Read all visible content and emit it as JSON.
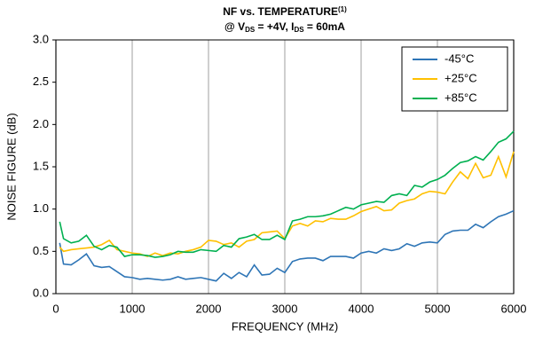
{
  "chart_data": {
    "type": "line",
    "title": "NF vs. TEMPERATURE",
    "title_note": "(1)",
    "subtitle": [
      "@ V",
      "DS",
      " = +4V, I",
      "DS",
      " = 60mA"
    ],
    "xlabel": "FREQUENCY (MHz)",
    "ylabel": "NOISE FIGURE (dB)",
    "x": [
      50,
      100,
      200,
      300,
      400,
      500,
      600,
      700,
      800,
      900,
      1000,
      1100,
      1200,
      1300,
      1400,
      1500,
      1600,
      1700,
      1800,
      1900,
      2000,
      2100,
      2200,
      2300,
      2400,
      2500,
      2600,
      2700,
      2800,
      2900,
      3000,
      3100,
      3200,
      3300,
      3400,
      3500,
      3600,
      3700,
      3800,
      3900,
      4000,
      4100,
      4200,
      4300,
      4400,
      4500,
      4600,
      4700,
      4800,
      4900,
      5000,
      5100,
      5200,
      5300,
      5400,
      5500,
      5600,
      5700,
      5800,
      5900,
      6000
    ],
    "series": [
      {
        "name": "-45°C",
        "color": "#2e75b6",
        "values": [
          0.6,
          0.35,
          0.34,
          0.4,
          0.47,
          0.33,
          0.31,
          0.32,
          0.26,
          0.2,
          0.19,
          0.17,
          0.18,
          0.17,
          0.16,
          0.17,
          0.2,
          0.17,
          0.18,
          0.19,
          0.17,
          0.15,
          0.24,
          0.18,
          0.25,
          0.2,
          0.34,
          0.22,
          0.23,
          0.3,
          0.25,
          0.38,
          0.41,
          0.42,
          0.42,
          0.39,
          0.44,
          0.44,
          0.44,
          0.42,
          0.48,
          0.5,
          0.48,
          0.53,
          0.51,
          0.53,
          0.59,
          0.56,
          0.6,
          0.61,
          0.6,
          0.7,
          0.74,
          0.75,
          0.75,
          0.82,
          0.78,
          0.85,
          0.91,
          0.94,
          0.98
        ]
      },
      {
        "name": "+25°C",
        "color": "#ffc000",
        "values": [
          0.55,
          0.5,
          0.52,
          0.53,
          0.54,
          0.55,
          0.58,
          0.63,
          0.52,
          0.5,
          0.48,
          0.47,
          0.44,
          0.48,
          0.45,
          0.48,
          0.47,
          0.5,
          0.52,
          0.55,
          0.63,
          0.62,
          0.58,
          0.6,
          0.55,
          0.62,
          0.64,
          0.72,
          0.73,
          0.74,
          0.65,
          0.8,
          0.83,
          0.8,
          0.86,
          0.85,
          0.89,
          0.88,
          0.88,
          0.92,
          0.97,
          1.0,
          1.03,
          0.98,
          0.99,
          1.07,
          1.1,
          1.12,
          1.18,
          1.21,
          1.2,
          1.18,
          1.32,
          1.44,
          1.36,
          1.54,
          1.37,
          1.4,
          1.62,
          1.38,
          1.68
        ]
      },
      {
        "name": "+85°C",
        "color": "#00b050",
        "values": [
          0.85,
          0.65,
          0.6,
          0.62,
          0.69,
          0.56,
          0.52,
          0.57,
          0.55,
          0.44,
          0.46,
          0.46,
          0.45,
          0.43,
          0.44,
          0.46,
          0.5,
          0.49,
          0.49,
          0.52,
          0.51,
          0.5,
          0.57,
          0.55,
          0.65,
          0.67,
          0.7,
          0.64,
          0.64,
          0.69,
          0.64,
          0.86,
          0.88,
          0.91,
          0.91,
          0.92,
          0.94,
          0.98,
          1.02,
          1.0,
          1.05,
          1.07,
          1.09,
          1.08,
          1.16,
          1.18,
          1.16,
          1.28,
          1.26,
          1.32,
          1.35,
          1.4,
          1.48,
          1.55,
          1.57,
          1.62,
          1.58,
          1.68,
          1.79,
          1.83,
          1.92
        ]
      }
    ],
    "xlim": [
      0,
      6000
    ],
    "xticks": [
      0,
      1000,
      2000,
      3000,
      4000,
      5000,
      6000
    ],
    "ylim": [
      0,
      3
    ],
    "yticks": [
      {
        "value": 0,
        "label": "0.0"
      },
      {
        "value": 0.5,
        "label": "0.5"
      },
      {
        "value": 1,
        "label": "1.0"
      },
      {
        "value": 1.5,
        "label": "1.5"
      },
      {
        "value": 2,
        "label": "2.0"
      },
      {
        "value": 2.5,
        "label": "2.5"
      },
      {
        "value": 3,
        "label": "3.0"
      }
    ],
    "grid": "x",
    "legend": "upper right"
  }
}
